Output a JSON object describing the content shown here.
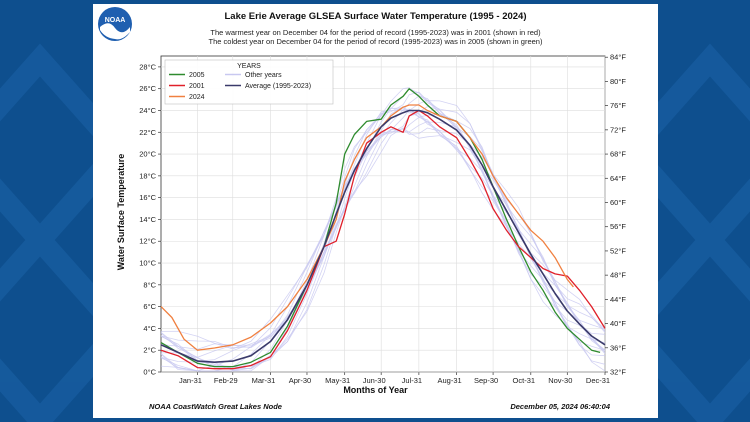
{
  "header": {
    "logo_text": "NOAA",
    "title": "Lake Erie Average GLSEA Surface Water Temperature (1995 - 2024)",
    "subtitle_line1": "The warmest year on December 04 for the period of record (1995-2023) was in 2001 (shown in red)",
    "subtitle_line2": "The coldest year on December 04 for the period of record (1995-2023) was in 2005 (shown in green)"
  },
  "footer": {
    "left": "NOAA CoastWatch Great Lakes Node",
    "right": "December 05, 2024 06:40:04"
  },
  "colors": {
    "y2005": "#2e8b2e",
    "y2001": "#e0202a",
    "y2024": "#f08040",
    "other": "#c8c8f0",
    "average": "#3a3a6a"
  },
  "chart_data": {
    "type": "line",
    "title": "Lake Erie Average GLSEA Surface Water Temperature (1995 - 2024)",
    "xlabel": "Months of Year",
    "ylabel": "Water Surface Temperature",
    "x_ticks": [
      "Jan-31",
      "Feb-29",
      "Mar-31",
      "Apr-30",
      "May-31",
      "Jun-30",
      "Jul-31",
      "Aug-31",
      "Sep-30",
      "Oct-31",
      "Nov-30",
      "Dec-31"
    ],
    "x_tick_days": [
      31,
      60,
      91,
      121,
      152,
      182,
      213,
      244,
      274,
      305,
      335,
      366
    ],
    "xlim": [
      1,
      366
    ],
    "ylim": [
      0,
      29
    ],
    "y_ticks_left": [
      "0°C",
      "2°C",
      "4°C",
      "6°C",
      "8°C",
      "10°C",
      "12°C",
      "14°C",
      "16°C",
      "18°C",
      "20°C",
      "22°C",
      "24°C",
      "26°C",
      "28°C"
    ],
    "y_ticks_right": [
      "32°F",
      "36°F",
      "40°F",
      "44°F",
      "48°F",
      "52°F",
      "56°F",
      "60°F",
      "64°F",
      "68°F",
      "72°F",
      "76°F",
      "80°F",
      "84°F"
    ],
    "legend": {
      "title": "YEARS",
      "position": "top-left",
      "entries": [
        "2005",
        "2001",
        "2024",
        "Other years",
        "Average (1995-2023)"
      ]
    },
    "grid": true,
    "series": [
      {
        "name": "2005",
        "x": [
          1,
          15,
          31,
          45,
          60,
          75,
          91,
          105,
          121,
          135,
          145,
          152,
          160,
          170,
          182,
          190,
          200,
          205,
          213,
          220,
          230,
          244,
          255,
          265,
          274,
          285,
          295,
          305,
          315,
          325,
          335,
          345,
          355,
          362
        ],
        "y": [
          2.7,
          1.8,
          0.8,
          0.5,
          0.5,
          0.9,
          1.8,
          4.2,
          8.0,
          11.5,
          15.5,
          20.0,
          21.8,
          23.0,
          23.2,
          24.5,
          25.3,
          26.0,
          25.3,
          24.5,
          23.5,
          23.0,
          21.5,
          19.5,
          17.0,
          14.0,
          11.5,
          9.2,
          7.5,
          5.5,
          4.0,
          3.0,
          2.0,
          1.8
        ]
      },
      {
        "name": "2001",
        "x": [
          1,
          15,
          31,
          45,
          60,
          75,
          91,
          105,
          121,
          135,
          145,
          152,
          160,
          170,
          182,
          190,
          200,
          205,
          213,
          220,
          230,
          244,
          255,
          265,
          274,
          285,
          295,
          305,
          315,
          325,
          335,
          345,
          355,
          366
        ],
        "y": [
          2.0,
          1.5,
          0.4,
          0.3,
          0.3,
          0.6,
          1.4,
          3.8,
          7.5,
          11.5,
          12.0,
          14.5,
          18.0,
          21.0,
          22.0,
          22.5,
          22.0,
          23.5,
          24.0,
          23.5,
          22.5,
          21.5,
          19.5,
          17.5,
          15.0,
          13.0,
          11.5,
          10.5,
          9.5,
          9.0,
          8.8,
          7.5,
          6.0,
          4.0
        ]
      },
      {
        "name": "2024",
        "x": [
          1,
          10,
          20,
          31,
          45,
          60,
          75,
          91,
          105,
          121,
          135,
          145,
          152,
          160,
          170,
          182,
          190,
          200,
          205,
          213,
          220,
          230,
          244,
          255,
          265,
          274,
          285,
          295,
          305,
          315,
          325,
          335,
          340
        ],
        "y": [
          6.0,
          5.0,
          3.0,
          2.0,
          2.2,
          2.5,
          3.2,
          4.5,
          6.0,
          8.5,
          11.5,
          14.0,
          17.5,
          19.5,
          21.5,
          22.5,
          23.5,
          24.3,
          24.5,
          24.5,
          24.0,
          23.5,
          23.0,
          21.5,
          20.0,
          18.0,
          16.0,
          14.5,
          13.0,
          12.0,
          10.5,
          8.5,
          7.8
        ]
      },
      {
        "name": "Average (1995-2023)",
        "x": [
          1,
          15,
          31,
          45,
          60,
          75,
          91,
          105,
          121,
          135,
          145,
          152,
          160,
          170,
          182,
          190,
          200,
          205,
          213,
          220,
          230,
          244,
          255,
          265,
          274,
          285,
          295,
          305,
          315,
          325,
          335,
          345,
          355,
          366
        ],
        "y": [
          2.5,
          1.8,
          1.0,
          0.9,
          1.0,
          1.5,
          2.8,
          4.8,
          8.0,
          11.5,
          14.5,
          16.5,
          18.5,
          20.5,
          22.5,
          23.3,
          23.8,
          24.0,
          24.0,
          23.8,
          23.2,
          22.2,
          20.8,
          19.0,
          17.0,
          14.8,
          12.8,
          10.8,
          9.0,
          7.2,
          5.6,
          4.4,
          3.3,
          2.5
        ]
      }
    ]
  }
}
